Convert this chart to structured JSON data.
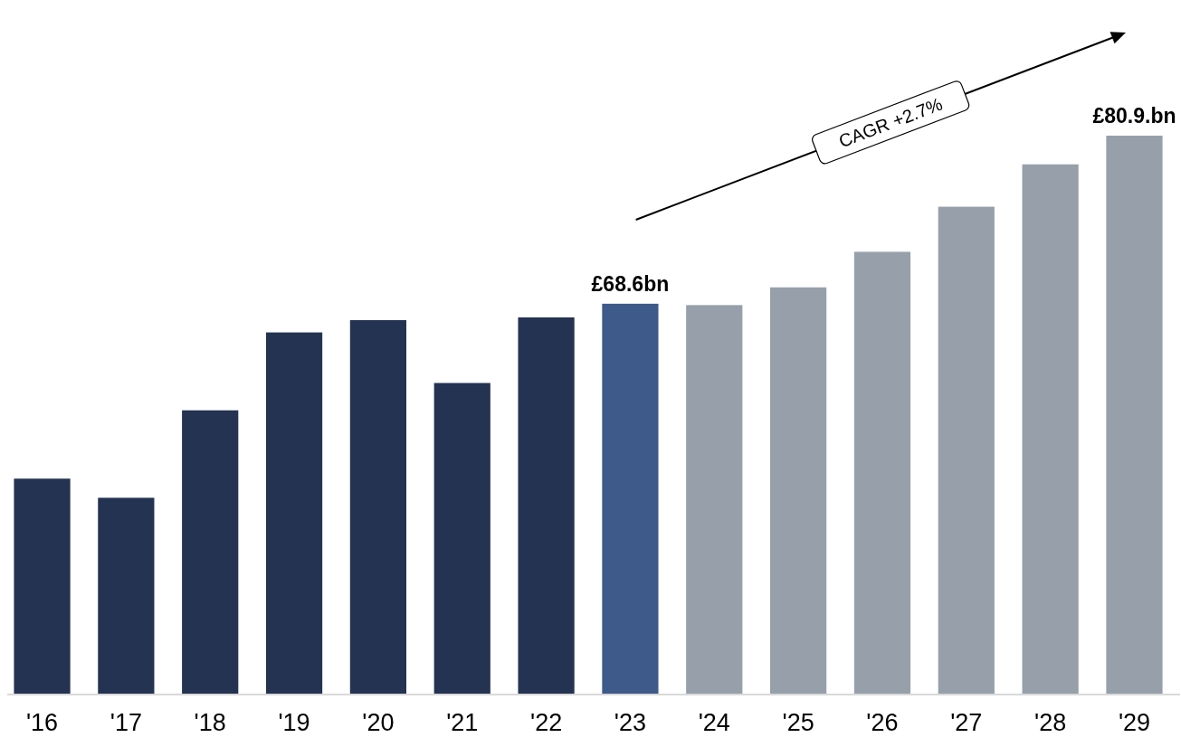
{
  "chart_data": {
    "type": "bar",
    "categories": [
      "'16",
      "'17",
      "'18",
      "'19",
      "'20",
      "'21",
      "'22",
      "'23",
      "'24",
      "'25",
      "'26",
      "'27",
      "'28",
      "'29"
    ],
    "values": [
      55.8,
      54.4,
      60.8,
      66.5,
      67.4,
      62.8,
      67.6,
      68.6,
      68.5,
      69.8,
      72.4,
      75.7,
      78.8,
      80.9
    ],
    "colors": [
      "#243352",
      "#243352",
      "#243352",
      "#243352",
      "#243352",
      "#243352",
      "#243352",
      "#3e5a8a",
      "#97a0aa",
      "#97a0aa",
      "#97a0aa",
      "#97a0aa",
      "#97a0aa",
      "#97a0aa"
    ],
    "value_labels": [
      null,
      null,
      null,
      null,
      null,
      null,
      null,
      "£68.6bn",
      null,
      null,
      null,
      null,
      null,
      "£80.9.bn"
    ],
    "ylim": [
      40,
      80.9
    ],
    "tick_labels": "x",
    "annotations": [
      "CAGR +2.7%"
    ]
  }
}
